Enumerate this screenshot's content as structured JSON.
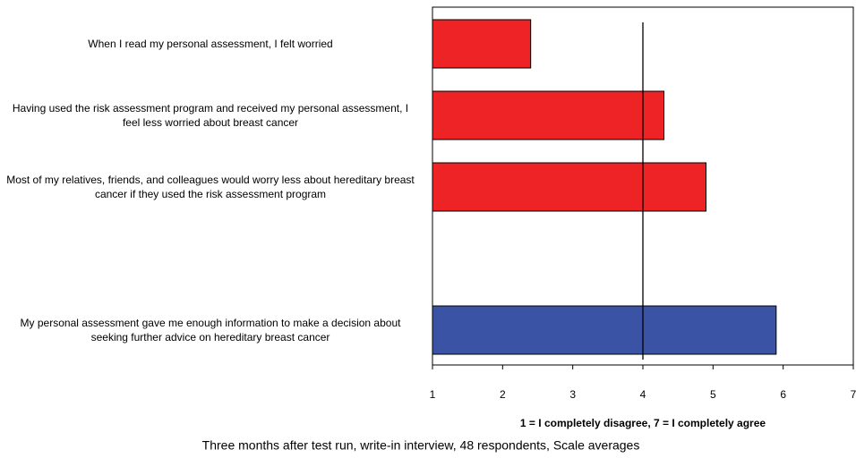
{
  "chart_data": {
    "type": "barh",
    "categories": [
      "When I read my personal assessment, I felt worried",
      "Having used the risk assessment program and received my personal assessment, I feel less worried about breast cancer",
      "Most of my relatives, friends, and colleagues would worry less about hereditary breast cancer if they used the risk assessment program",
      null,
      "My personal assessment gave me enough information to make a decision about seeking further advice on hereditary breast cancer"
    ],
    "values": [
      2.4,
      4.3,
      4.9,
      null,
      5.9
    ],
    "colors": [
      "#ee2325",
      "#ee2325",
      "#ee2325",
      null,
      "#3a53a4"
    ],
    "xlim": [
      1,
      7
    ],
    "xticks": [
      1,
      2,
      3,
      4,
      5,
      6,
      7
    ],
    "reference_line": 4,
    "xlabel": "1 = I completely disagree, 7 = I completely agree",
    "footnote": "Three months after test run, write-in interview, 48 respondents, Scale averages"
  }
}
